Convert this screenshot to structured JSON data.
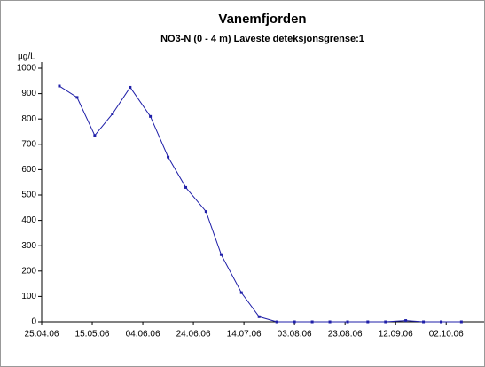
{
  "chart_data": {
    "type": "line",
    "title": "Vanemfjorden",
    "subtitle": "NO3-N (0 - 4 m) Laveste deteksjonsgrense:1",
    "y_label": "µg/L",
    "x": [
      "2006-05-02",
      "2006-05-09",
      "2006-05-16",
      "2006-05-23",
      "2006-05-30",
      "2006-06-07",
      "2006-06-14",
      "2006-06-21",
      "2006-06-29",
      "2006-07-05",
      "2006-07-13",
      "2006-07-20",
      "2006-07-27",
      "2006-08-03",
      "2006-08-10",
      "2006-08-17",
      "2006-08-24",
      "2006-09-01",
      "2006-09-08",
      "2006-09-16",
      "2006-09-23",
      "2006-09-30",
      "2006-10-08"
    ],
    "series": [
      {
        "name": "NO3-N",
        "color": "#1f1fa8",
        "values": [
          930,
          885,
          735,
          820,
          925,
          810,
          650,
          530,
          435,
          265,
          115,
          20,
          0,
          0,
          0,
          0,
          0,
          0,
          0,
          5,
          0,
          0,
          0
        ]
      }
    ],
    "xlim": [
      "2006-04-25",
      "2006-10-17"
    ],
    "xticks": [
      {
        "value": "2006-04-25",
        "label": "25.04.06"
      },
      {
        "value": "2006-05-15",
        "label": "15.05.06"
      },
      {
        "value": "2006-06-04",
        "label": "04.06.06"
      },
      {
        "value": "2006-06-24",
        "label": "24.06.06"
      },
      {
        "value": "2006-07-14",
        "label": "14.07.06"
      },
      {
        "value": "2006-08-03",
        "label": "03.08.06"
      },
      {
        "value": "2006-08-23",
        "label": "23.08.06"
      },
      {
        "value": "2006-09-12",
        "label": "12.09.06"
      },
      {
        "value": "2006-10-02",
        "label": "02.10.06"
      }
    ],
    "ylim": [
      0,
      1000
    ],
    "yticks": [
      0,
      100,
      200,
      300,
      400,
      500,
      600,
      700,
      800,
      900,
      1000
    ]
  }
}
